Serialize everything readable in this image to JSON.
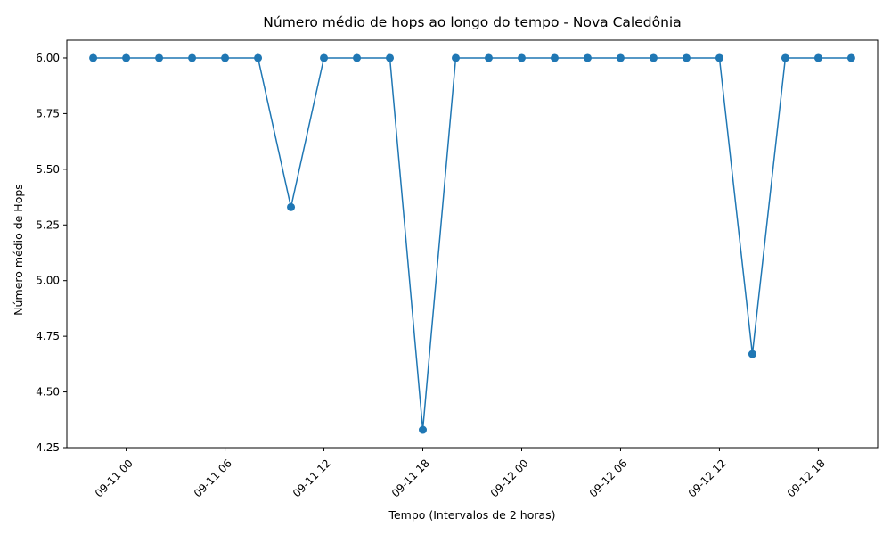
{
  "chart_data": {
    "type": "line",
    "title": "Número médio de hops ao longo do tempo - Nova Caledônia",
    "xlabel": "Tempo (Intervalos de 2 horas)",
    "ylabel": "Número médio de Hops",
    "ylim": [
      4.25,
      6.08
    ],
    "yticks": [
      4.25,
      4.5,
      4.75,
      5.0,
      5.25,
      5.5,
      5.75,
      6.0
    ],
    "ytick_labels": [
      "4.25",
      "4.50",
      "4.75",
      "5.00",
      "5.25",
      "5.50",
      "5.75",
      "6.00"
    ],
    "xlim": [
      "2025-09-10 20:24",
      "2025-09-12 21:36"
    ],
    "xticks": [
      "2025-09-11 00:00",
      "2025-09-11 06:00",
      "2025-09-11 12:00",
      "2025-09-11 18:00",
      "2025-09-12 00:00",
      "2025-09-12 06:00",
      "2025-09-12 12:00",
      "2025-09-12 18:00"
    ],
    "xtick_labels": [
      "09-11 00",
      "09-11 06",
      "09-11 12",
      "09-11 18",
      "09-12 00",
      "09-12 06",
      "09-12 12",
      "09-12 18"
    ],
    "grid": false,
    "series": [
      {
        "color": "#1f77b4",
        "marker": "circle",
        "x": [
          "2025-09-10 22:00",
          "2025-09-11 00:00",
          "2025-09-11 02:00",
          "2025-09-11 04:00",
          "2025-09-11 06:00",
          "2025-09-11 08:00",
          "2025-09-11 10:00",
          "2025-09-11 12:00",
          "2025-09-11 14:00",
          "2025-09-11 16:00",
          "2025-09-11 18:00",
          "2025-09-11 20:00",
          "2025-09-11 22:00",
          "2025-09-12 00:00",
          "2025-09-12 02:00",
          "2025-09-12 04:00",
          "2025-09-12 06:00",
          "2025-09-12 08:00",
          "2025-09-12 10:00",
          "2025-09-12 12:00",
          "2025-09-12 14:00",
          "2025-09-12 16:00",
          "2025-09-12 18:00",
          "2025-09-12 20:00"
        ],
        "y": [
          6.0,
          6.0,
          6.0,
          6.0,
          6.0,
          6.0,
          5.33,
          6.0,
          6.0,
          6.0,
          4.33,
          6.0,
          6.0,
          6.0,
          6.0,
          6.0,
          6.0,
          6.0,
          6.0,
          6.0,
          4.67,
          6.0,
          6.0,
          6.0
        ]
      }
    ]
  }
}
